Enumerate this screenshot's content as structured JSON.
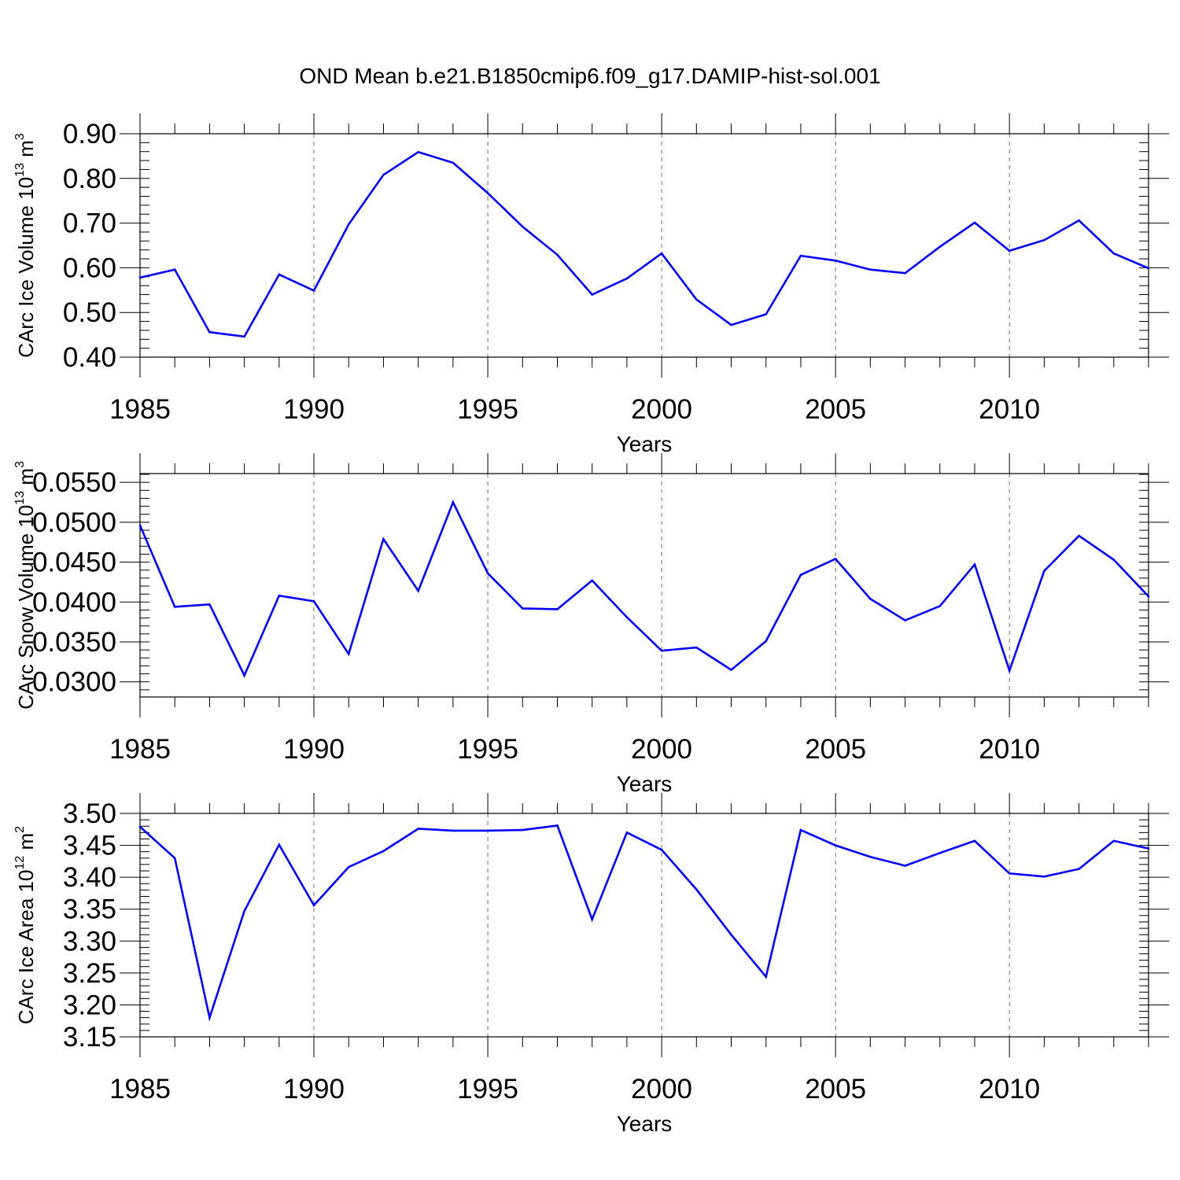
{
  "title": "OND Mean b.e21.B1850cmip6.f09_g17.DAMIP-hist-sol.001",
  "chart_data": [
    {
      "type": "line",
      "ylabel": {
        "main": "CArc Ice Volume 10",
        "exp": "13",
        "unit": " m",
        "unit_exp": "3"
      },
      "xlabel": "Years",
      "xlim": [
        1985,
        2014
      ],
      "ylim": [
        0.4,
        0.9
      ],
      "yticks": [
        0.4,
        0.5,
        0.6,
        0.7,
        0.8,
        0.9
      ],
      "ytick_labels": [
        "0.40",
        "0.50",
        "0.60",
        "0.70",
        "0.80",
        "0.90"
      ],
      "xticks": [
        1985,
        1990,
        1995,
        2000,
        2005,
        2010
      ],
      "xtick_labels": [
        "1985",
        "1990",
        "1995",
        "2000",
        "2005",
        "2010"
      ],
      "line_color": "#0000ff",
      "x": [
        1985,
        1986,
        1987,
        1988,
        1989,
        1990,
        1991,
        1992,
        1993,
        1994,
        1995,
        1996,
        1997,
        1998,
        1999,
        2000,
        2001,
        2002,
        2003,
        2004,
        2005,
        2006,
        2007,
        2008,
        2009,
        2010,
        2011,
        2012,
        2013,
        2014
      ],
      "values": [
        0.578,
        0.596,
        0.456,
        0.446,
        0.585,
        0.549,
        0.697,
        0.808,
        0.859,
        0.835,
        0.767,
        0.692,
        0.629,
        0.54,
        0.576,
        0.632,
        0.529,
        0.472,
        0.496,
        0.627,
        0.616,
        0.596,
        0.588,
        0.647,
        0.701,
        0.638,
        0.662,
        0.706,
        0.632,
        0.599
      ]
    },
    {
      "type": "line",
      "ylabel": {
        "main": "CArc Snow Volume 10",
        "exp": "13",
        "unit": " m",
        "unit_exp": "3"
      },
      "xlabel": "Years",
      "xlim": [
        1985,
        2014
      ],
      "ylim": [
        0.0281,
        0.0561
      ],
      "yticks": [
        0.03,
        0.035,
        0.04,
        0.045,
        0.05,
        0.055
      ],
      "ytick_labels": [
        "0.0300",
        "0.0350",
        "0.0400",
        "0.0450",
        "0.0500",
        "0.0550"
      ],
      "xticks": [
        1985,
        1990,
        1995,
        2000,
        2005,
        2010
      ],
      "xtick_labels": [
        "1985",
        "1990",
        "1995",
        "2000",
        "2005",
        "2010"
      ],
      "line_color": "#0000ff",
      "x": [
        1985,
        1986,
        1987,
        1988,
        1989,
        1990,
        1991,
        1992,
        1993,
        1994,
        1995,
        1996,
        1997,
        1998,
        1999,
        2000,
        2001,
        2002,
        2003,
        2004,
        2005,
        2006,
        2007,
        2008,
        2009,
        2010,
        2011,
        2012,
        2013,
        2014
      ],
      "values": [
        0.0496,
        0.0394,
        0.0397,
        0.0308,
        0.0408,
        0.0401,
        0.0335,
        0.0479,
        0.0414,
        0.0525,
        0.0436,
        0.0392,
        0.0391,
        0.0427,
        0.0381,
        0.0339,
        0.0343,
        0.0315,
        0.0351,
        0.0434,
        0.0454,
        0.0404,
        0.0377,
        0.0395,
        0.0447,
        0.0314,
        0.0439,
        0.0483,
        0.0453,
        0.0407
      ]
    },
    {
      "type": "line",
      "ylabel": {
        "main": "CArc Ice Area 10",
        "exp": "12",
        "unit": " m",
        "unit_exp": "2"
      },
      "xlabel": "Years",
      "xlim": [
        1985,
        2014
      ],
      "ylim": [
        3.15,
        3.5
      ],
      "yticks": [
        3.15,
        3.2,
        3.25,
        3.3,
        3.35,
        3.4,
        3.45,
        3.5
      ],
      "ytick_labels": [
        "3.15",
        "3.20",
        "3.25",
        "3.30",
        "3.35",
        "3.40",
        "3.45",
        "3.50"
      ],
      "xticks": [
        1985,
        1990,
        1995,
        2000,
        2005,
        2010
      ],
      "xtick_labels": [
        "1985",
        "1990",
        "1995",
        "2000",
        "2005",
        "2010"
      ],
      "line_color": "#0000ff",
      "x": [
        1985,
        1986,
        1987,
        1988,
        1989,
        1990,
        1991,
        1992,
        1993,
        1994,
        1995,
        1996,
        1997,
        1998,
        1999,
        2000,
        2001,
        2002,
        2003,
        2004,
        2005,
        2006,
        2007,
        2008,
        2009,
        2010,
        2011,
        2012,
        2013,
        2014
      ],
      "values": [
        3.479,
        3.43,
        3.18,
        3.347,
        3.451,
        3.356,
        3.416,
        3.441,
        3.476,
        3.473,
        3.473,
        3.474,
        3.481,
        3.334,
        3.47,
        3.443,
        3.381,
        3.31,
        3.244,
        3.474,
        3.45,
        3.432,
        3.418,
        3.438,
        3.457,
        3.406,
        3.401,
        3.413,
        3.457,
        3.445
      ]
    }
  ]
}
